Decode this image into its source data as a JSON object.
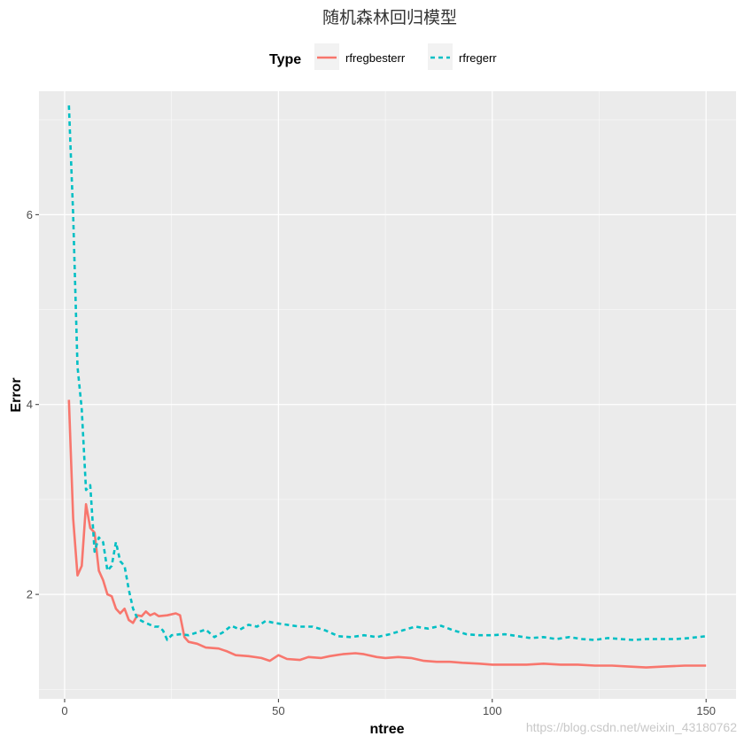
{
  "chart_data": {
    "type": "line",
    "title": "随机森林回归模型",
    "xlabel": "ntree",
    "ylabel": "Error",
    "xlim": [
      -6,
      157
    ],
    "ylim": [
      0.9,
      7.3
    ],
    "x_ticks": [
      0,
      50,
      100,
      150
    ],
    "y_ticks": [
      2,
      4,
      6
    ],
    "grid": true,
    "legend": {
      "title": "Type",
      "position": "top"
    },
    "series": [
      {
        "name": "rfregbesterr",
        "color": "#F8766D",
        "dash": "solid",
        "points": [
          [
            1,
            4.05
          ],
          [
            2,
            2.8
          ],
          [
            3,
            2.2
          ],
          [
            4,
            2.3
          ],
          [
            5,
            2.95
          ],
          [
            6,
            2.7
          ],
          [
            7,
            2.65
          ],
          [
            8,
            2.25
          ],
          [
            9,
            2.15
          ],
          [
            10,
            2.0
          ],
          [
            11,
            1.98
          ],
          [
            12,
            1.85
          ],
          [
            13,
            1.8
          ],
          [
            14,
            1.85
          ],
          [
            15,
            1.73
          ],
          [
            16,
            1.7
          ],
          [
            17,
            1.78
          ],
          [
            18,
            1.77
          ],
          [
            19,
            1.82
          ],
          [
            20,
            1.78
          ],
          [
            21,
            1.8
          ],
          [
            22,
            1.77
          ],
          [
            24,
            1.78
          ],
          [
            26,
            1.8
          ],
          [
            27,
            1.78
          ],
          [
            28,
            1.55
          ],
          [
            29,
            1.5
          ],
          [
            31,
            1.48
          ],
          [
            33,
            1.44
          ],
          [
            36,
            1.43
          ],
          [
            38,
            1.4
          ],
          [
            40,
            1.36
          ],
          [
            43,
            1.35
          ],
          [
            46,
            1.33
          ],
          [
            48,
            1.3
          ],
          [
            50,
            1.36
          ],
          [
            52,
            1.32
          ],
          [
            55,
            1.31
          ],
          [
            57,
            1.34
          ],
          [
            60,
            1.33
          ],
          [
            62,
            1.35
          ],
          [
            65,
            1.37
          ],
          [
            68,
            1.38
          ],
          [
            70,
            1.37
          ],
          [
            73,
            1.34
          ],
          [
            75,
            1.33
          ],
          [
            78,
            1.34
          ],
          [
            81,
            1.33
          ],
          [
            84,
            1.3
          ],
          [
            87,
            1.29
          ],
          [
            90,
            1.29
          ],
          [
            93,
            1.28
          ],
          [
            97,
            1.27
          ],
          [
            100,
            1.26
          ],
          [
            104,
            1.26
          ],
          [
            108,
            1.26
          ],
          [
            112,
            1.27
          ],
          [
            116,
            1.26
          ],
          [
            120,
            1.26
          ],
          [
            124,
            1.25
          ],
          [
            128,
            1.25
          ],
          [
            132,
            1.24
          ],
          [
            136,
            1.23
          ],
          [
            140,
            1.24
          ],
          [
            145,
            1.25
          ],
          [
            150,
            1.25
          ]
        ]
      },
      {
        "name": "rfregerr",
        "color": "#00BFC4",
        "dash": "dashed",
        "points": [
          [
            1,
            7.15
          ],
          [
            2,
            6.0
          ],
          [
            3,
            4.4
          ],
          [
            4,
            3.95
          ],
          [
            5,
            3.1
          ],
          [
            6,
            3.15
          ],
          [
            7,
            2.45
          ],
          [
            8,
            2.6
          ],
          [
            9,
            2.55
          ],
          [
            10,
            2.25
          ],
          [
            11,
            2.3
          ],
          [
            12,
            2.55
          ],
          [
            13,
            2.35
          ],
          [
            14,
            2.3
          ],
          [
            15,
            2.05
          ],
          [
            16,
            1.85
          ],
          [
            17,
            1.75
          ],
          [
            18,
            1.72
          ],
          [
            19,
            1.7
          ],
          [
            20,
            1.68
          ],
          [
            21,
            1.66
          ],
          [
            22,
            1.66
          ],
          [
            23,
            1.62
          ],
          [
            24,
            1.52
          ],
          [
            25,
            1.57
          ],
          [
            27,
            1.58
          ],
          [
            29,
            1.57
          ],
          [
            31,
            1.6
          ],
          [
            33,
            1.63
          ],
          [
            35,
            1.55
          ],
          [
            37,
            1.6
          ],
          [
            39,
            1.67
          ],
          [
            41,
            1.63
          ],
          [
            43,
            1.68
          ],
          [
            45,
            1.66
          ],
          [
            47,
            1.72
          ],
          [
            49,
            1.7
          ],
          [
            52,
            1.68
          ],
          [
            55,
            1.66
          ],
          [
            58,
            1.66
          ],
          [
            61,
            1.62
          ],
          [
            64,
            1.56
          ],
          [
            67,
            1.55
          ],
          [
            70,
            1.57
          ],
          [
            73,
            1.55
          ],
          [
            76,
            1.58
          ],
          [
            79,
            1.62
          ],
          [
            82,
            1.66
          ],
          [
            85,
            1.64
          ],
          [
            88,
            1.67
          ],
          [
            91,
            1.62
          ],
          [
            94,
            1.58
          ],
          [
            97,
            1.57
          ],
          [
            100,
            1.57
          ],
          [
            103,
            1.58
          ],
          [
            106,
            1.56
          ],
          [
            109,
            1.54
          ],
          [
            112,
            1.55
          ],
          [
            115,
            1.53
          ],
          [
            118,
            1.55
          ],
          [
            121,
            1.53
          ],
          [
            124,
            1.52
          ],
          [
            127,
            1.54
          ],
          [
            130,
            1.53
          ],
          [
            133,
            1.52
          ],
          [
            136,
            1.53
          ],
          [
            140,
            1.53
          ],
          [
            143,
            1.53
          ],
          [
            146,
            1.54
          ],
          [
            150,
            1.56
          ]
        ]
      }
    ]
  },
  "watermark": "https://blog.csdn.net/weixin_43180762"
}
